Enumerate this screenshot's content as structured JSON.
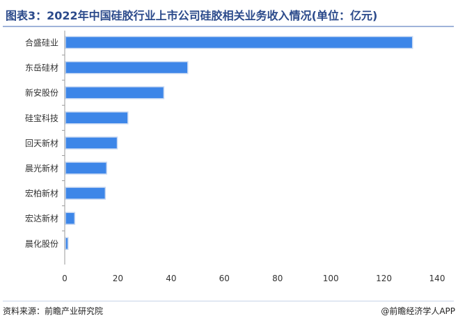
{
  "title": "图表3：2022年中国硅胶行业上市公司硅胶相关业务收入情况(单位：亿元)",
  "footer": {
    "source": "资料来源：前瞻产业研究院",
    "credit": "@前瞻经济学人APP"
  },
  "colors": {
    "bar": "#3d86e8",
    "bar_edge": "#c9d9f2",
    "axis": "#9a9a9a",
    "title": "#2b4a8b"
  },
  "chart_data": {
    "type": "bar",
    "orientation": "horizontal",
    "categories": [
      "合盛硅业",
      "东岳硅材",
      "新安股份",
      "硅宝科技",
      "回天新材",
      "晨光新材",
      "宏柏新材",
      "宏达新材",
      "晨化股份"
    ],
    "values": [
      130.5,
      46,
      37,
      23.5,
      19.5,
      15.5,
      15,
      3.5,
      1
    ],
    "xlim": [
      0,
      140
    ],
    "xticks": [
      0,
      20,
      40,
      60,
      80,
      100,
      120,
      140
    ],
    "grid": false,
    "legend": "none"
  }
}
